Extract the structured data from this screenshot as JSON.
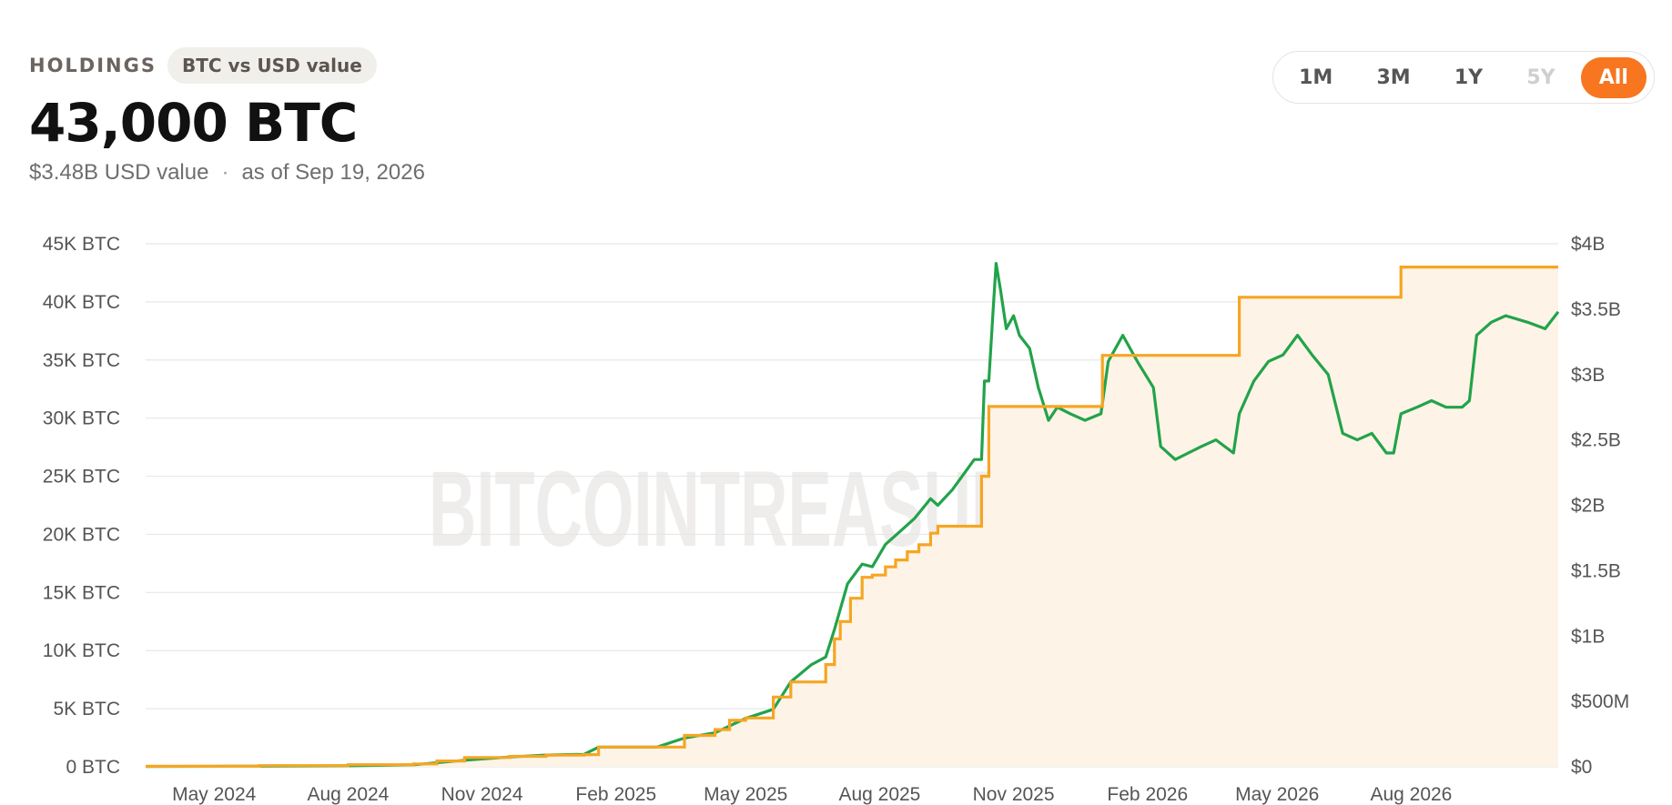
{
  "header": {
    "holdings_label": "HOLDINGS",
    "toggle_label": "BTC vs USD value",
    "total_btc": "43,000 BTC",
    "usd_value": "$3.48B USD value",
    "separator": "·",
    "as_of": "as of Sep 19, 2026"
  },
  "range_buttons": [
    {
      "label": "1M",
      "state": "normal"
    },
    {
      "label": "3M",
      "state": "normal"
    },
    {
      "label": "1Y",
      "state": "normal"
    },
    {
      "label": "5Y",
      "state": "disabled"
    },
    {
      "label": "All",
      "state": "active"
    }
  ],
  "colors": {
    "holdings_line": "#f5a623",
    "holdings_fill": "#fdf3e6",
    "usd_line": "#22a34a",
    "accent": "#f7761f",
    "grid": "#e7e7e7"
  },
  "watermark": "BITCOINTREASURIES.NET",
  "chart_data": {
    "type": "line",
    "title": "",
    "x_type": "date",
    "xlim": [
      "2024-03-15",
      "2026-11-10"
    ],
    "x_ticks": [
      {
        "date": "2024-05-01",
        "label": "May 2024"
      },
      {
        "date": "2024-08-01",
        "label": "Aug 2024"
      },
      {
        "date": "2024-11-01",
        "label": "Nov 2024"
      },
      {
        "date": "2025-02-01",
        "label": "Feb 2025"
      },
      {
        "date": "2025-05-01",
        "label": "May 2025"
      },
      {
        "date": "2025-08-01",
        "label": "Aug 2025"
      },
      {
        "date": "2025-11-01",
        "label": "Nov 2025"
      },
      {
        "date": "2026-02-01",
        "label": "Feb 2026"
      },
      {
        "date": "2026-05-01",
        "label": "May 2026"
      },
      {
        "date": "2026-08-01",
        "label": "Aug 2026"
      }
    ],
    "y_left": {
      "min": 0,
      "max": 45000,
      "ticks": [
        {
          "value": 0,
          "label": "0 BTC"
        },
        {
          "value": 5000,
          "label": "5K BTC"
        },
        {
          "value": 10000,
          "label": "10K BTC"
        },
        {
          "value": 15000,
          "label": "15K BTC"
        },
        {
          "value": 20000,
          "label": "20K BTC"
        },
        {
          "value": 25000,
          "label": "25K BTC"
        },
        {
          "value": 30000,
          "label": "30K BTC"
        },
        {
          "value": 35000,
          "label": "35K BTC"
        },
        {
          "value": 40000,
          "label": "40K BTC"
        },
        {
          "value": 45000,
          "label": "45K BTC"
        }
      ]
    },
    "y_right": {
      "min": 0,
      "max": 4000000000,
      "ticks": [
        {
          "value": 0,
          "label": "$0"
        },
        {
          "value": 500000000,
          "label": "$500M"
        },
        {
          "value": 1000000000,
          "label": "$1B"
        },
        {
          "value": 1500000000,
          "label": "$1.5B"
        },
        {
          "value": 2000000000,
          "label": "$2B"
        },
        {
          "value": 2500000000,
          "label": "$2.5B"
        },
        {
          "value": 3000000000,
          "label": "$3B"
        },
        {
          "value": 3500000000,
          "label": "$3.5B"
        },
        {
          "value": 4000000000,
          "label": "$4B"
        }
      ]
    },
    "grid": true,
    "series": [
      {
        "key": "holdings",
        "axis": "left",
        "style": "step-area",
        "points": [
          [
            "2024-03-15",
            50
          ],
          [
            "2024-06-01",
            100
          ],
          [
            "2024-08-01",
            180
          ],
          [
            "2024-09-15",
            250
          ],
          [
            "2024-10-01",
            500
          ],
          [
            "2024-10-20",
            800
          ],
          [
            "2024-11-20",
            900
          ],
          [
            "2024-12-15",
            1000
          ],
          [
            "2025-01-10",
            1050
          ],
          [
            "2025-01-20",
            1700
          ],
          [
            "2025-03-01",
            1700
          ],
          [
            "2025-03-20",
            2700
          ],
          [
            "2025-04-10",
            3200
          ],
          [
            "2025-04-20",
            4000
          ],
          [
            "2025-05-01",
            4200
          ],
          [
            "2025-05-20",
            6000
          ],
          [
            "2025-06-01",
            7300
          ],
          [
            "2025-06-15",
            7300
          ],
          [
            "2025-06-25",
            8800
          ],
          [
            "2025-07-01",
            11000
          ],
          [
            "2025-07-05",
            12500
          ],
          [
            "2025-07-12",
            14500
          ],
          [
            "2025-07-20",
            16300
          ],
          [
            "2025-07-27",
            16500
          ],
          [
            "2025-08-05",
            17200
          ],
          [
            "2025-08-12",
            17800
          ],
          [
            "2025-08-20",
            18500
          ],
          [
            "2025-08-28",
            19100
          ],
          [
            "2025-09-05",
            20100
          ],
          [
            "2025-09-10",
            20700
          ],
          [
            "2025-10-10",
            25000
          ],
          [
            "2025-10-15",
            31000
          ],
          [
            "2025-12-31",
            31000
          ],
          [
            "2026-01-01",
            35400
          ],
          [
            "2026-04-01",
            35400
          ],
          [
            "2026-04-05",
            40400
          ],
          [
            "2026-07-20",
            40400
          ],
          [
            "2026-07-25",
            43000
          ],
          [
            "2026-11-10",
            43000
          ]
        ]
      },
      {
        "key": "usd_value",
        "axis": "right",
        "style": "line",
        "points": [
          [
            "2024-03-15",
            2000000
          ],
          [
            "2024-06-01",
            5000000
          ],
          [
            "2024-08-01",
            8000000
          ],
          [
            "2024-09-15",
            15000000
          ],
          [
            "2024-10-20",
            50000000
          ],
          [
            "2024-11-20",
            75000000
          ],
          [
            "2024-12-15",
            90000000
          ],
          [
            "2025-01-10",
            95000000
          ],
          [
            "2025-01-20",
            150000000
          ],
          [
            "2025-03-01",
            150000000
          ],
          [
            "2025-03-20",
            220000000
          ],
          [
            "2025-04-10",
            260000000
          ],
          [
            "2025-05-01",
            370000000
          ],
          [
            "2025-05-20",
            440000000
          ],
          [
            "2025-06-01",
            650000000
          ],
          [
            "2025-06-15",
            780000000
          ],
          [
            "2025-06-25",
            840000000
          ],
          [
            "2025-07-01",
            1050000000
          ],
          [
            "2025-07-10",
            1400000000
          ],
          [
            "2025-07-20",
            1550000000
          ],
          [
            "2025-07-27",
            1530000000
          ],
          [
            "2025-08-05",
            1700000000
          ],
          [
            "2025-08-15",
            1800000000
          ],
          [
            "2025-08-25",
            1900000000
          ],
          [
            "2025-09-05",
            2050000000
          ],
          [
            "2025-09-10",
            2000000000
          ],
          [
            "2025-09-20",
            2120000000
          ],
          [
            "2025-10-05",
            2350000000
          ],
          [
            "2025-10-10",
            2350000000
          ],
          [
            "2025-10-12",
            2950000000
          ],
          [
            "2025-10-15",
            2950000000
          ],
          [
            "2025-10-18",
            3500000000
          ],
          [
            "2025-10-20",
            3850000000
          ],
          [
            "2025-10-23",
            3650000000
          ],
          [
            "2025-10-27",
            3350000000
          ],
          [
            "2025-11-01",
            3450000000
          ],
          [
            "2025-11-05",
            3300000000
          ],
          [
            "2025-11-12",
            3200000000
          ],
          [
            "2025-11-18",
            2900000000
          ],
          [
            "2025-11-25",
            2650000000
          ],
          [
            "2025-12-01",
            2750000000
          ],
          [
            "2025-12-10",
            2700000000
          ],
          [
            "2025-12-20",
            2650000000
          ],
          [
            "2025-12-31",
            2700000000
          ],
          [
            "2026-01-05",
            3100000000
          ],
          [
            "2026-01-15",
            3300000000
          ],
          [
            "2026-01-20",
            3200000000
          ],
          [
            "2026-01-25",
            3100000000
          ],
          [
            "2026-02-05",
            2900000000
          ],
          [
            "2026-02-10",
            2450000000
          ],
          [
            "2026-02-20",
            2350000000
          ],
          [
            "2026-03-01",
            2400000000
          ],
          [
            "2026-03-10",
            2450000000
          ],
          [
            "2026-03-20",
            2500000000
          ],
          [
            "2026-04-01",
            2400000000
          ],
          [
            "2026-04-05",
            2700000000
          ],
          [
            "2026-04-15",
            2950000000
          ],
          [
            "2026-04-25",
            3100000000
          ],
          [
            "2026-05-05",
            3150000000
          ],
          [
            "2026-05-15",
            3300000000
          ],
          [
            "2026-05-25",
            3150000000
          ],
          [
            "2026-06-05",
            3000000000
          ],
          [
            "2026-06-15",
            2550000000
          ],
          [
            "2026-06-25",
            2500000000
          ],
          [
            "2026-07-05",
            2550000000
          ],
          [
            "2026-07-15",
            2400000000
          ],
          [
            "2026-07-20",
            2400000000
          ],
          [
            "2026-07-25",
            2700000000
          ],
          [
            "2026-08-05",
            2750000000
          ],
          [
            "2026-08-15",
            2800000000
          ],
          [
            "2026-08-25",
            2750000000
          ],
          [
            "2026-09-05",
            2750000000
          ],
          [
            "2026-09-10",
            2800000000
          ],
          [
            "2026-09-15",
            3300000000
          ],
          [
            "2026-09-25",
            3400000000
          ],
          [
            "2026-10-05",
            3450000000
          ],
          [
            "2026-10-20",
            3400000000
          ],
          [
            "2026-11-01",
            3350000000
          ],
          [
            "2026-11-10",
            3480000000
          ]
        ]
      }
    ]
  }
}
